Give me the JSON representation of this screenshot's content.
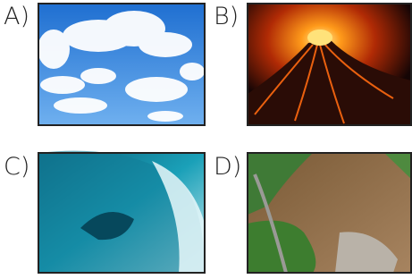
{
  "options": [
    {
      "label": "A)"
    },
    {
      "label": "B)"
    },
    {
      "label": "C)"
    },
    {
      "label": "D)"
    }
  ]
}
